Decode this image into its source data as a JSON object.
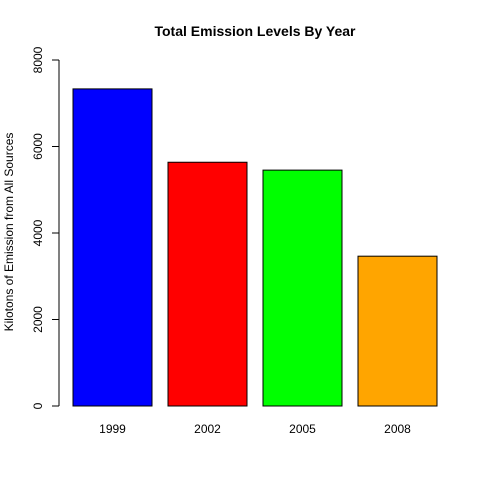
{
  "chart_data": {
    "type": "bar",
    "title": "Total Emission Levels By Year",
    "xlabel": "",
    "ylabel": "Kilotons of Emission from All Sources",
    "categories": [
      "1999",
      "2002",
      "2005",
      "2008"
    ],
    "values": [
      7332,
      5636,
      5454,
      3464
    ],
    "colors": [
      "#0000ff",
      "#ff0000",
      "#00ff00",
      "#ffa500"
    ],
    "ylim": [
      0,
      8000
    ],
    "yticks": [
      "0",
      "2000",
      "4000",
      "6000",
      "8000"
    ],
    "grid": false,
    "legend": "none"
  }
}
